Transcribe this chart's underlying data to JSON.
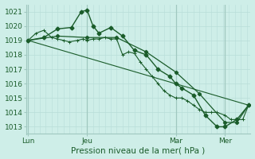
{
  "xlabel": "Pression niveau de la mer( hPa )",
  "bg_color": "#ceeee8",
  "grid_minor_color": "#b8ddd8",
  "grid_major_color": "#a0c8c0",
  "line_color": "#1a5c2a",
  "ylim": [
    1012.5,
    1021.5
  ],
  "yticks": [
    1013,
    1014,
    1015,
    1016,
    1017,
    1018,
    1019,
    1020,
    1021
  ],
  "xtick_labels": [
    "Lun",
    "Jeu",
    "Mar",
    "Mer"
  ],
  "xtick_positions": [
    0,
    30,
    75,
    100
  ],
  "vline_positions": [
    0,
    30,
    75,
    100
  ],
  "xlim": [
    -1,
    113
  ],
  "series1_x": [
    0,
    4,
    8,
    12,
    15,
    18,
    21,
    25,
    28,
    30,
    33,
    36,
    39,
    42,
    45,
    48,
    51,
    54,
    57,
    60,
    63,
    66,
    69,
    72,
    75,
    78,
    81,
    84,
    87,
    90,
    93,
    96,
    100,
    103,
    106,
    109,
    112
  ],
  "series1_y": [
    1019.0,
    1019.5,
    1019.7,
    1019.2,
    1019.1,
    1019.0,
    1018.9,
    1019.0,
    1019.1,
    1019.0,
    1019.1,
    1019.1,
    1019.2,
    1019.1,
    1019.1,
    1018.0,
    1018.2,
    1018.1,
    1017.5,
    1017.0,
    1016.5,
    1016.0,
    1015.5,
    1015.2,
    1015.0,
    1015.0,
    1014.8,
    1014.5,
    1014.2,
    1014.0,
    1014.0,
    1014.0,
    1013.8,
    1013.5,
    1013.5,
    1013.5,
    1014.5
  ],
  "series2_x": [
    0,
    8,
    15,
    22,
    27,
    30,
    33,
    36,
    42,
    48,
    54,
    60,
    66,
    72,
    75,
    78,
    84,
    90,
    96,
    100,
    106,
    112
  ],
  "series2_y": [
    1019.0,
    1019.2,
    1019.8,
    1019.9,
    1021.0,
    1021.1,
    1020.0,
    1019.5,
    1019.9,
    1019.3,
    1018.3,
    1018.0,
    1017.0,
    1016.5,
    1016.0,
    1015.7,
    1015.2,
    1013.8,
    1013.0,
    1013.0,
    1013.5,
    1014.5
  ],
  "series3_x": [
    0,
    15,
    30,
    45,
    60,
    75,
    87,
    100,
    106,
    112
  ],
  "series3_y": [
    1019.0,
    1019.3,
    1019.2,
    1019.2,
    1018.2,
    1016.8,
    1015.3,
    1013.3,
    1013.3,
    1014.5
  ],
  "series4_x": [
    0,
    112
  ],
  "series4_y": [
    1019.0,
    1014.5
  ]
}
